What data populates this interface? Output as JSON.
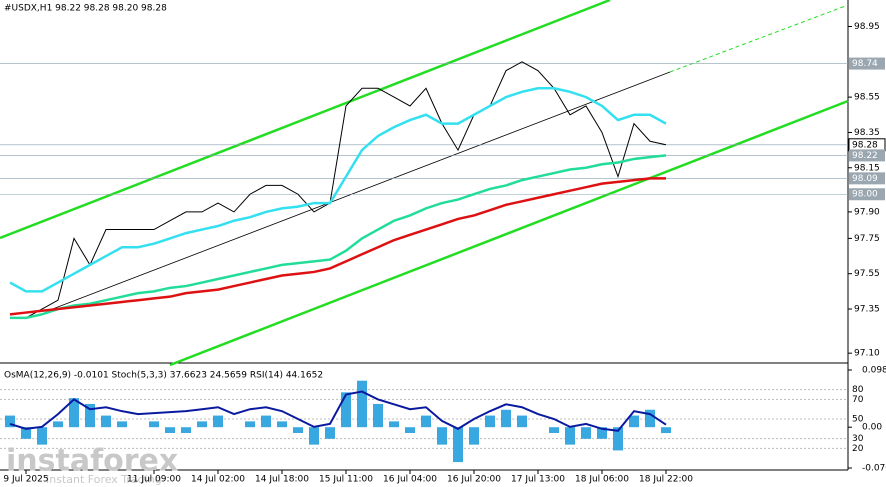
{
  "chart_data": [
    {
      "type": "line",
      "title": "#USDX,H1  98.22 98.28 98.20 98.28",
      "categories": [
        null,
        "9 Jul 2025",
        null,
        null,
        null,
        null,
        null,
        null,
        null,
        "11 Jul 09:00",
        null,
        null,
        null,
        "14 Jul 02:00",
        null,
        null,
        null,
        "14 Jul 18:00",
        null,
        null,
        null,
        "15 Jul 11:00",
        null,
        null,
        null,
        "16 Jul 04:00",
        null,
        null,
        null,
        "16 Jul 20:00",
        null,
        null,
        null,
        "17 Jul 13:00",
        null,
        null,
        null,
        "18 Jul 06:00",
        null,
        null,
        null,
        "18 Jul 22:00"
      ],
      "series": [
        {
          "color": "#000000",
          "values": [
            97.3,
            97.3,
            97.35,
            97.4,
            97.75,
            97.6,
            97.8,
            97.8,
            97.8,
            97.8,
            97.85,
            97.9,
            97.9,
            97.95,
            97.9,
            98.0,
            98.05,
            98.05,
            98.0,
            97.9,
            97.95,
            98.5,
            98.6,
            98.6,
            98.55,
            98.5,
            98.6,
            98.4,
            98.25,
            98.45,
            98.5,
            98.7,
            98.75,
            98.7,
            98.6,
            98.45,
            98.5,
            98.35,
            98.1,
            98.4,
            98.3,
            98.28
          ]
        },
        {
          "color": "#33e0f0",
          "values": [
            97.5,
            97.45,
            97.45,
            97.5,
            97.55,
            97.6,
            97.65,
            97.7,
            97.7,
            97.72,
            97.75,
            97.78,
            97.8,
            97.82,
            97.85,
            97.87,
            97.9,
            97.92,
            97.93,
            97.95,
            97.95,
            98.1,
            98.25,
            98.33,
            98.38,
            98.42,
            98.45,
            98.4,
            98.4,
            98.45,
            98.5,
            98.55,
            98.58,
            98.6,
            98.6,
            98.58,
            98.55,
            98.5,
            98.42,
            98.45,
            98.45,
            98.4
          ]
        },
        {
          "color": "#22dd99",
          "values": [
            97.3,
            97.3,
            97.32,
            97.35,
            97.37,
            97.38,
            97.4,
            97.42,
            97.44,
            97.45,
            97.47,
            97.48,
            97.5,
            97.52,
            97.54,
            97.56,
            97.58,
            97.6,
            97.61,
            97.62,
            97.63,
            97.68,
            97.75,
            97.8,
            97.85,
            97.88,
            97.92,
            97.95,
            97.97,
            98.0,
            98.03,
            98.05,
            98.08,
            98.1,
            98.12,
            98.14,
            98.15,
            98.17,
            98.18,
            98.2,
            98.21,
            98.22
          ]
        },
        {
          "color": "#dd1111",
          "values": [
            97.32,
            97.33,
            97.34,
            97.35,
            97.36,
            97.37,
            97.38,
            97.39,
            97.4,
            97.41,
            97.42,
            97.44,
            97.45,
            97.46,
            97.48,
            97.5,
            97.52,
            97.54,
            97.55,
            97.56,
            97.58,
            97.62,
            97.66,
            97.7,
            97.74,
            97.77,
            97.8,
            97.83,
            97.86,
            97.88,
            97.91,
            97.94,
            97.96,
            97.98,
            98.0,
            98.02,
            98.04,
            98.06,
            98.07,
            98.08,
            98.09,
            98.09
          ]
        }
      ],
      "ylim": [
        97.05,
        99.1
      ],
      "yticks": [
        98.95,
        98.55,
        98.35,
        98.15,
        {
          "value": 97.9,
          "label": "97.90"
        },
        97.75,
        97.55,
        97.35,
        {
          "value": 97.1,
          "label": "97.10"
        }
      ],
      "levels": [
        98.74,
        98.28,
        98.22,
        98.09,
        {
          "value": 98.0,
          "label": "98.00"
        }
      ],
      "current": 98.28
    },
    {
      "type": "bar",
      "title": "OsMA(12,26,9) -0.0101  Stoch(5,3,3) 37.6623 24.5659  RSI(14) 44.1652",
      "series": [
        {
          "color": "#3aa8e0",
          "values": [
            0.02,
            -0.02,
            -0.03,
            0.01,
            0.05,
            0.04,
            0.02,
            0.01,
            0,
            0.01,
            -0.01,
            -0.01,
            0.01,
            0.02,
            0,
            0.01,
            0.02,
            0.01,
            -0.01,
            -0.03,
            -0.02,
            0.06,
            0.08,
            0.04,
            0.01,
            -0.01,
            0.02,
            -0.03,
            -0.06,
            -0.03,
            0.02,
            0.03,
            0.02,
            0,
            -0.01,
            -0.03,
            -0.02,
            -0.02,
            -0.04,
            0.02,
            0.03,
            -0.0101
          ]
        },
        {
          "color": "#0a1aa0",
          "axis": "y2",
          "values": [
            45,
            40,
            42,
            55,
            70,
            60,
            62,
            58,
            55,
            56,
            57,
            58,
            60,
            62,
            55,
            60,
            62,
            58,
            50,
            42,
            45,
            75,
            78,
            70,
            65,
            60,
            62,
            48,
            40,
            50,
            58,
            65,
            62,
            55,
            50,
            42,
            45,
            40,
            38,
            58,
            55,
            44.1652
          ]
        }
      ],
      "ylim": [
        -0.0702,
        0.0984
      ],
      "yticks": [
        0.0984,
        {
          "value": 0,
          "label": "0.00"
        },
        -0.0702
      ],
      "y2lim": [
        0,
        100
      ],
      "y2ticks": [
        80,
        70,
        50,
        30,
        20
      ]
    }
  ],
  "watermark": {
    "brand": "instaforex",
    "tagline": "Instant Forex Trading"
  }
}
